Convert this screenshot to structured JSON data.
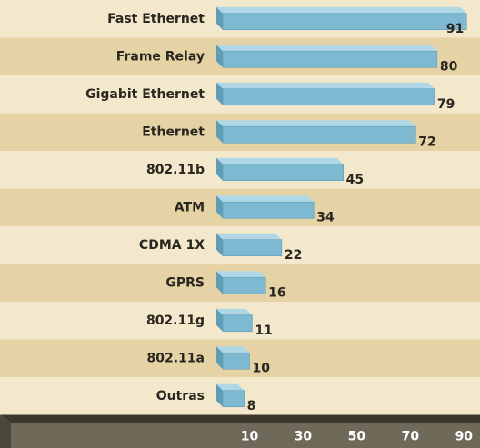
{
  "chart_data": {
    "type": "bar",
    "orientation": "horizontal",
    "categories": [
      "Fast Ethernet",
      "Frame Relay",
      "Gigabit Ethernet",
      "Ethernet",
      "802.11b",
      "ATM",
      "CDMA 1X",
      "GPRS",
      "802.11g",
      "802.11a",
      "Outras"
    ],
    "values": [
      91,
      80,
      79,
      72,
      45,
      34,
      22,
      16,
      11,
      10,
      8
    ],
    "color": "#7db9d1",
    "xlim": [
      0,
      96
    ],
    "xticks": [
      10,
      30,
      50,
      70,
      90
    ],
    "grid": false
  }
}
